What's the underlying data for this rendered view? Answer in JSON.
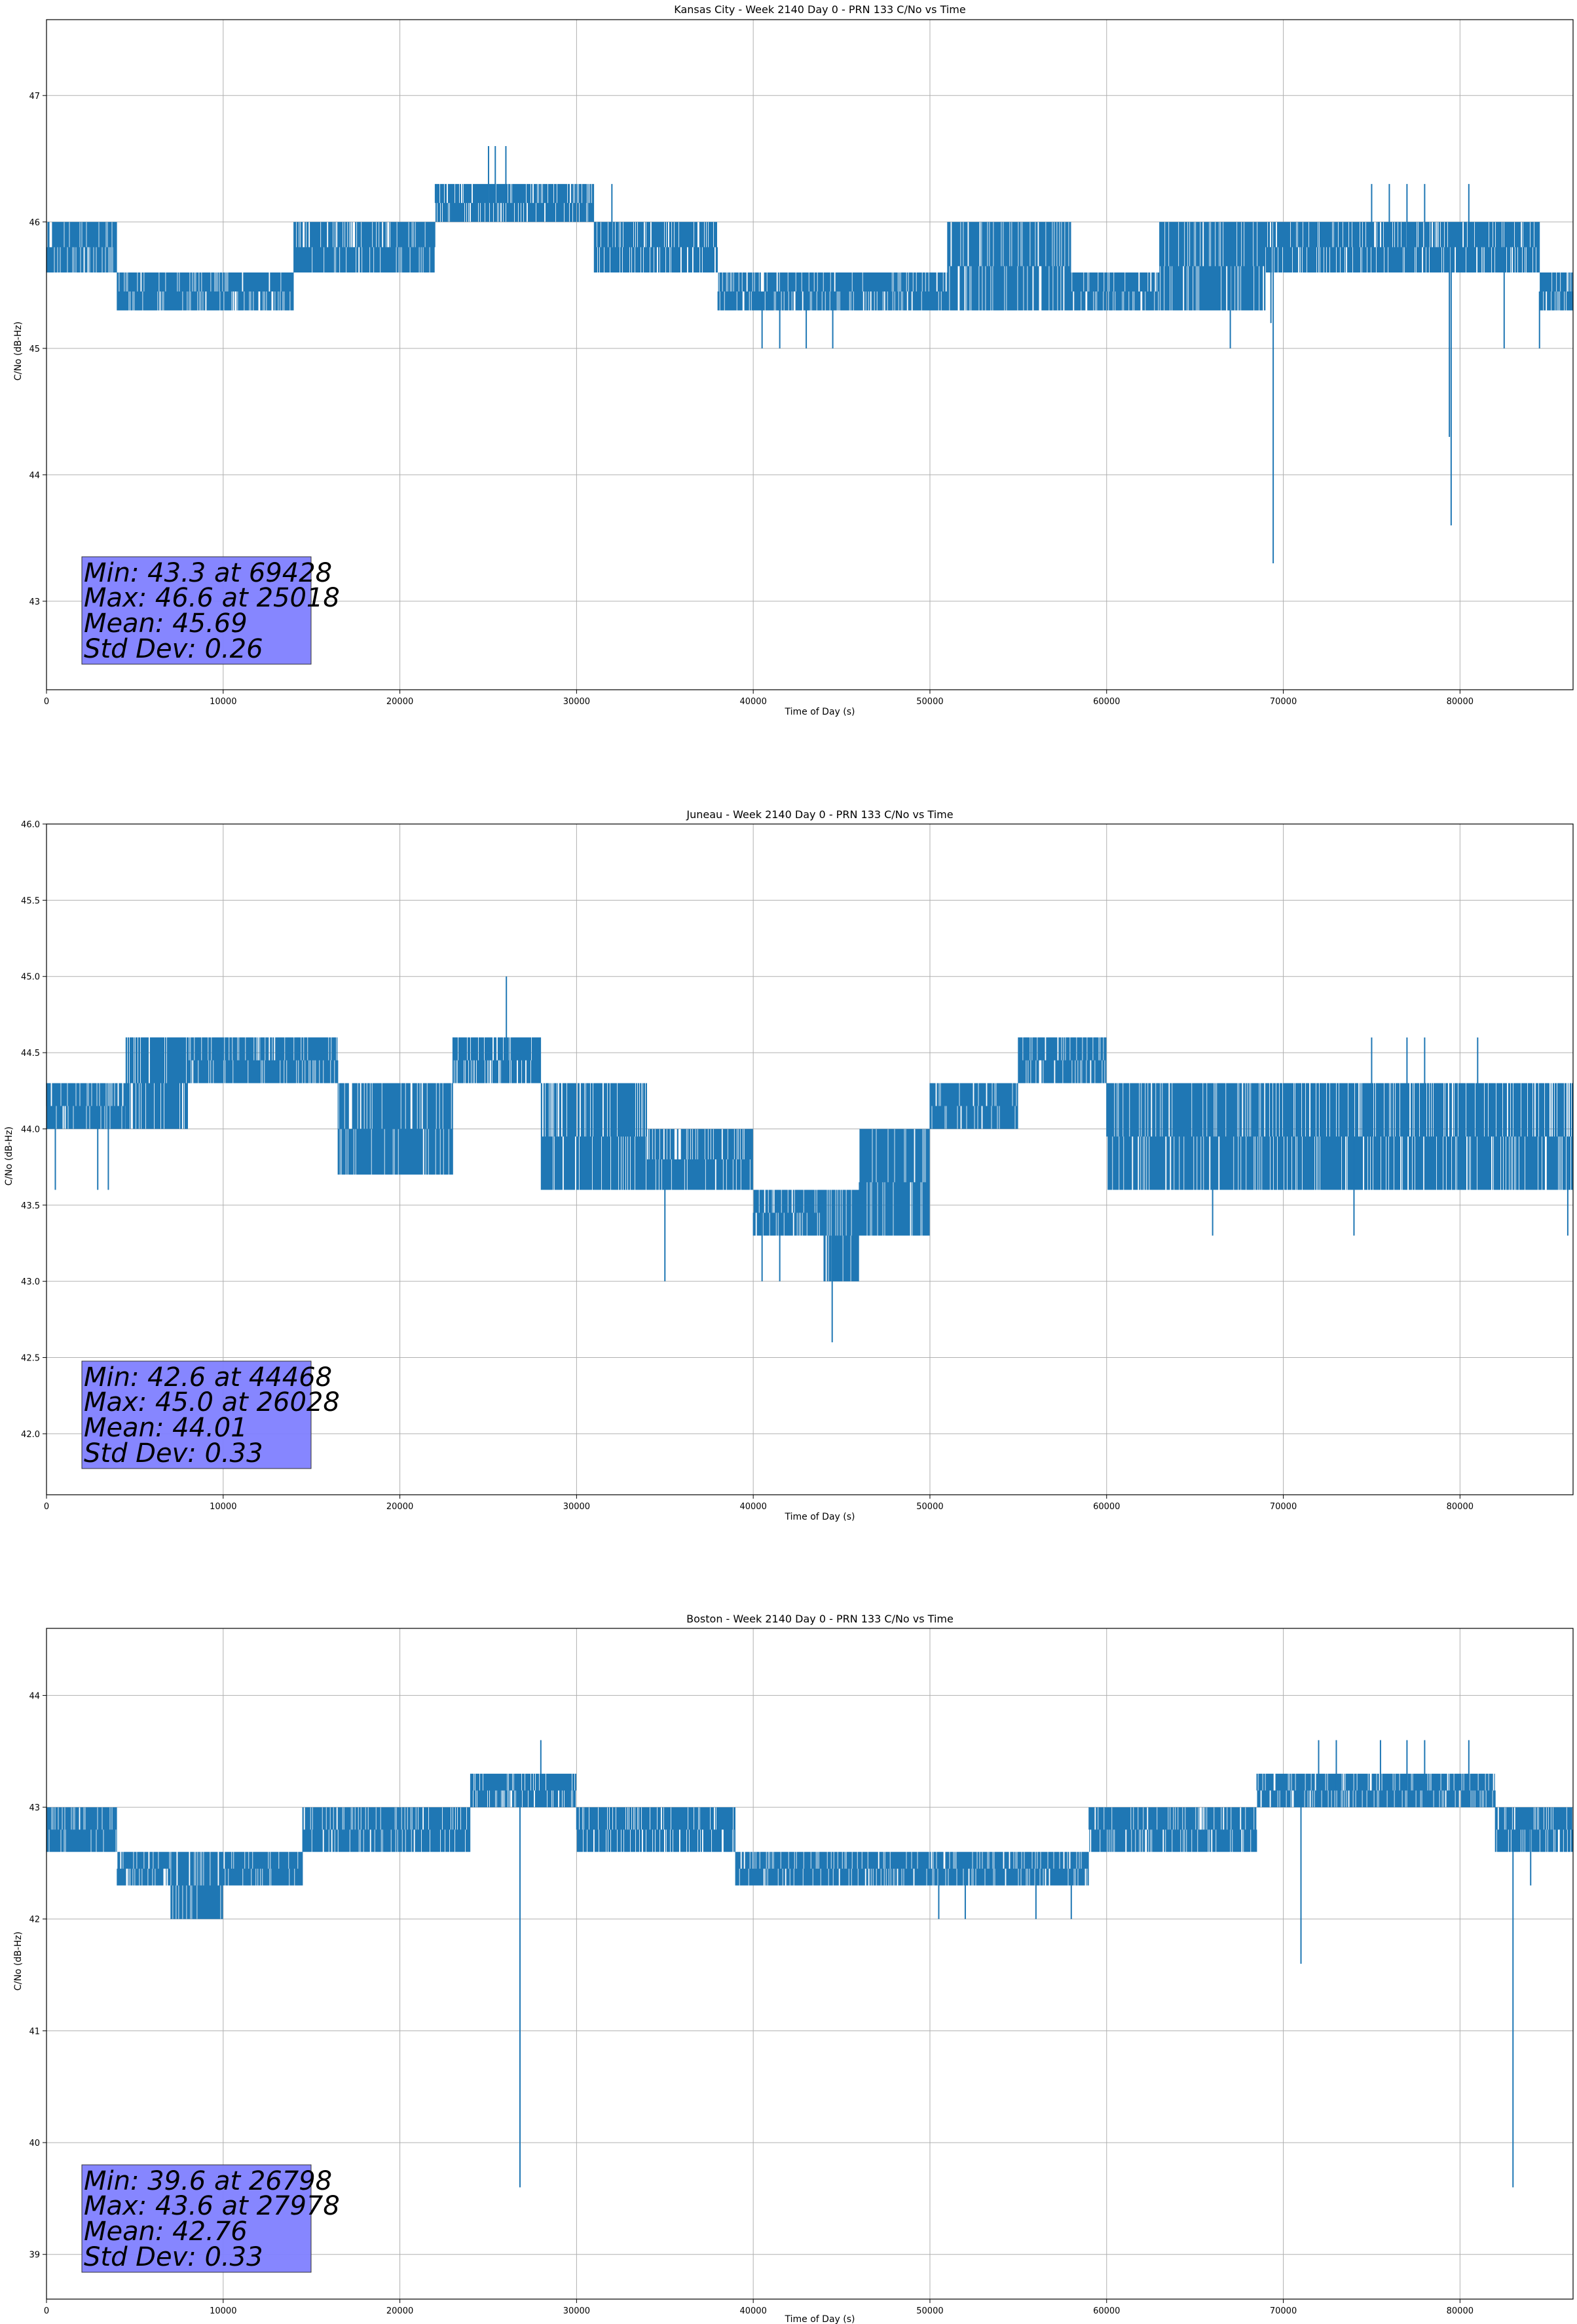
{
  "figure": {
    "background": "#ffffff"
  },
  "style": {
    "line_color": "#1f77b4",
    "grid_color": "#b0b0b0",
    "stats_box_color": "#8080ff",
    "stats_box_edge": "#333333"
  },
  "chart_data": [
    {
      "type": "line",
      "title": "Kansas City - Week 2140 Day 0 - PRN 133 C/No vs Time",
      "xlabel": "Time of Day (s)",
      "ylabel": "C/No (dB-Hz)",
      "xlim": [
        0,
        86400
      ],
      "ylim": [
        42.3,
        47.6
      ],
      "xticks": [
        0,
        10000,
        20000,
        30000,
        40000,
        50000,
        60000,
        70000,
        80000
      ],
      "xtick_labels": [
        "0",
        "10000",
        "20000",
        "30000",
        "40000",
        "50000",
        "60000",
        "70000",
        "80000"
      ],
      "yticks": [
        43,
        44,
        45,
        46,
        47
      ],
      "ytick_labels": [
        "43",
        "44",
        "45",
        "46",
        "47"
      ],
      "grid": true,
      "stats_text": [
        "Min: 43.3 at 69428",
        "Max: 46.6 at 25018",
        "Mean: 45.69",
        "Std Dev: 0.26"
      ],
      "band_segments": [
        {
          "x": [
            0,
            4000
          ],
          "low": 45.6,
          "high": 46.0
        },
        {
          "x": [
            4000,
            14000
          ],
          "low": 45.3,
          "high": 45.6
        },
        {
          "x": [
            14000,
            19500
          ],
          "low": 45.6,
          "high": 46.0
        },
        {
          "x": [
            19500,
            22000
          ],
          "low": 45.6,
          "high": 46.0
        },
        {
          "x": [
            22000,
            31000
          ],
          "low": 46.0,
          "high": 46.3
        },
        {
          "x": [
            31000,
            38000
          ],
          "low": 45.6,
          "high": 46.0
        },
        {
          "x": [
            38000,
            51000
          ],
          "low": 45.3,
          "high": 45.6
        },
        {
          "x": [
            51000,
            58000
          ],
          "low": 45.3,
          "high": 46.0
        },
        {
          "x": [
            58000,
            63000
          ],
          "low": 45.3,
          "high": 45.6
        },
        {
          "x": [
            63000,
            69000
          ],
          "low": 45.3,
          "high": 46.0
        },
        {
          "x": [
            69000,
            84500
          ],
          "low": 45.6,
          "high": 46.0
        },
        {
          "x": [
            84500,
            86400
          ],
          "low": 45.3,
          "high": 45.6
        }
      ],
      "spikes": [
        {
          "x": 25018,
          "y": 46.6
        },
        {
          "x": 25400,
          "y": 46.6
        },
        {
          "x": 26000,
          "y": 46.6
        },
        {
          "x": 69428,
          "y": 43.3
        },
        {
          "x": 69300,
          "y": 45.2
        },
        {
          "x": 79500,
          "y": 43.6
        },
        {
          "x": 79400,
          "y": 44.3
        },
        {
          "x": 40500,
          "y": 45.0
        },
        {
          "x": 41500,
          "y": 45.0
        },
        {
          "x": 43000,
          "y": 45.0
        },
        {
          "x": 44500,
          "y": 45.0
        },
        {
          "x": 67000,
          "y": 45.0
        },
        {
          "x": 82500,
          "y": 45.0
        },
        {
          "x": 84500,
          "y": 45.0
        },
        {
          "x": 75000,
          "y": 46.3
        },
        {
          "x": 76000,
          "y": 46.3
        },
        {
          "x": 77000,
          "y": 46.3
        },
        {
          "x": 78000,
          "y": 46.3
        },
        {
          "x": 80500,
          "y": 46.3
        },
        {
          "x": 32000,
          "y": 46.3
        }
      ]
    },
    {
      "type": "line",
      "title": "Juneau - Week 2140 Day 0 - PRN 133 C/No vs Time",
      "xlabel": "Time of Day (s)",
      "ylabel": "C/No (dB-Hz)",
      "xlim": [
        0,
        86400
      ],
      "ylim": [
        41.6,
        46.0
      ],
      "xticks": [
        0,
        10000,
        20000,
        30000,
        40000,
        50000,
        60000,
        70000,
        80000
      ],
      "xtick_labels": [
        "0",
        "10000",
        "20000",
        "30000",
        "40000",
        "50000",
        "60000",
        "70000",
        "80000"
      ],
      "yticks": [
        42.0,
        42.5,
        43.0,
        43.5,
        44.0,
        44.5,
        45.0,
        45.5,
        46.0
      ],
      "ytick_labels": [
        "42.0",
        "42.5",
        "43.0",
        "43.5",
        "44.0",
        "44.5",
        "45.0",
        "45.5",
        "46.0"
      ],
      "grid": true,
      "stats_text": [
        "Min: 42.6 at 44468",
        "Max: 45.0 at 26028",
        "Mean: 44.01",
        "Std Dev: 0.33"
      ],
      "band_segments": [
        {
          "x": [
            0,
            4500
          ],
          "low": 44.0,
          "high": 44.3
        },
        {
          "x": [
            4500,
            8000
          ],
          "low": 44.0,
          "high": 44.6
        },
        {
          "x": [
            8000,
            16500
          ],
          "low": 44.3,
          "high": 44.6
        },
        {
          "x": [
            16500,
            23000
          ],
          "low": 43.7,
          "high": 44.3
        },
        {
          "x": [
            23000,
            28000
          ],
          "low": 44.3,
          "high": 44.6
        },
        {
          "x": [
            28000,
            34000
          ],
          "low": 43.6,
          "high": 44.3
        },
        {
          "x": [
            34000,
            40000
          ],
          "low": 43.6,
          "high": 44.0
        },
        {
          "x": [
            40000,
            44000
          ],
          "low": 43.3,
          "high": 43.6
        },
        {
          "x": [
            44000,
            46000
          ],
          "low": 43.0,
          "high": 43.6
        },
        {
          "x": [
            46000,
            50000
          ],
          "low": 43.3,
          "high": 44.0
        },
        {
          "x": [
            50000,
            55000
          ],
          "low": 44.0,
          "high": 44.3
        },
        {
          "x": [
            55000,
            60000
          ],
          "low": 44.3,
          "high": 44.6
        },
        {
          "x": [
            60000,
            69000
          ],
          "low": 43.6,
          "high": 44.3
        },
        {
          "x": [
            69000,
            78000
          ],
          "low": 43.6,
          "high": 44.3
        },
        {
          "x": [
            78000,
            86400
          ],
          "low": 43.6,
          "high": 44.3
        }
      ],
      "spikes": [
        {
          "x": 26028,
          "y": 45.0
        },
        {
          "x": 44468,
          "y": 42.6
        },
        {
          "x": 35000,
          "y": 43.0
        },
        {
          "x": 40500,
          "y": 43.0
        },
        {
          "x": 41500,
          "y": 43.0
        },
        {
          "x": 500,
          "y": 43.6
        },
        {
          "x": 2900,
          "y": 43.6
        },
        {
          "x": 3500,
          "y": 43.6
        },
        {
          "x": 66000,
          "y": 43.3
        },
        {
          "x": 74000,
          "y": 43.3
        },
        {
          "x": 86100,
          "y": 43.3
        },
        {
          "x": 75000,
          "y": 44.6
        },
        {
          "x": 77000,
          "y": 44.6
        },
        {
          "x": 78000,
          "y": 44.6
        },
        {
          "x": 81000,
          "y": 44.6
        }
      ]
    },
    {
      "type": "line",
      "title": "Boston - Week 2140 Day 0 - PRN 133 C/No vs Time",
      "xlabel": "Time of Day (s)",
      "ylabel": "C/No (dB-Hz)",
      "xlim": [
        0,
        86400
      ],
      "ylim": [
        38.6,
        44.6
      ],
      "xticks": [
        0,
        10000,
        20000,
        30000,
        40000,
        50000,
        60000,
        70000,
        80000
      ],
      "xtick_labels": [
        "0",
        "10000",
        "20000",
        "30000",
        "40000",
        "50000",
        "60000",
        "70000",
        "80000"
      ],
      "yticks": [
        39,
        40,
        41,
        42,
        43,
        44
      ],
      "ytick_labels": [
        "39",
        "40",
        "41",
        "42",
        "43",
        "44"
      ],
      "grid": true,
      "stats_text": [
        "Min: 39.6 at 26798",
        "Max: 43.6 at 27978",
        "Mean: 42.76",
        "Std Dev: 0.33"
      ],
      "band_segments": [
        {
          "x": [
            0,
            4000
          ],
          "low": 42.6,
          "high": 43.0
        },
        {
          "x": [
            4000,
            7000
          ],
          "low": 42.3,
          "high": 42.6
        },
        {
          "x": [
            7000,
            10000
          ],
          "low": 42.0,
          "high": 42.6
        },
        {
          "x": [
            10000,
            14500
          ],
          "low": 42.3,
          "high": 42.6
        },
        {
          "x": [
            14500,
            21000
          ],
          "low": 42.6,
          "high": 43.0
        },
        {
          "x": [
            21000,
            24000
          ],
          "low": 42.6,
          "high": 43.0
        },
        {
          "x": [
            24000,
            30000
          ],
          "low": 43.0,
          "high": 43.3
        },
        {
          "x": [
            30000,
            39000
          ],
          "low": 42.6,
          "high": 43.0
        },
        {
          "x": [
            39000,
            48000
          ],
          "low": 42.3,
          "high": 42.6
        },
        {
          "x": [
            48000,
            59000
          ],
          "low": 42.3,
          "high": 42.6
        },
        {
          "x": [
            59000,
            68500
          ],
          "low": 42.6,
          "high": 43.0
        },
        {
          "x": [
            68500,
            82000
          ],
          "low": 43.0,
          "high": 43.3
        },
        {
          "x": [
            82000,
            86400
          ],
          "low": 42.6,
          "high": 43.0
        }
      ],
      "spikes": [
        {
          "x": 26798,
          "y": 39.6
        },
        {
          "x": 27978,
          "y": 43.6
        },
        {
          "x": 71000,
          "y": 41.6
        },
        {
          "x": 83000,
          "y": 39.6
        },
        {
          "x": 56000,
          "y": 42.0
        },
        {
          "x": 58000,
          "y": 42.0
        },
        {
          "x": 50500,
          "y": 42.0
        },
        {
          "x": 52000,
          "y": 42.0
        },
        {
          "x": 72000,
          "y": 43.6
        },
        {
          "x": 73000,
          "y": 43.6
        },
        {
          "x": 75500,
          "y": 43.6
        },
        {
          "x": 77000,
          "y": 43.6
        },
        {
          "x": 78000,
          "y": 43.6
        },
        {
          "x": 80500,
          "y": 43.6
        },
        {
          "x": 84000,
          "y": 42.3
        }
      ]
    }
  ]
}
